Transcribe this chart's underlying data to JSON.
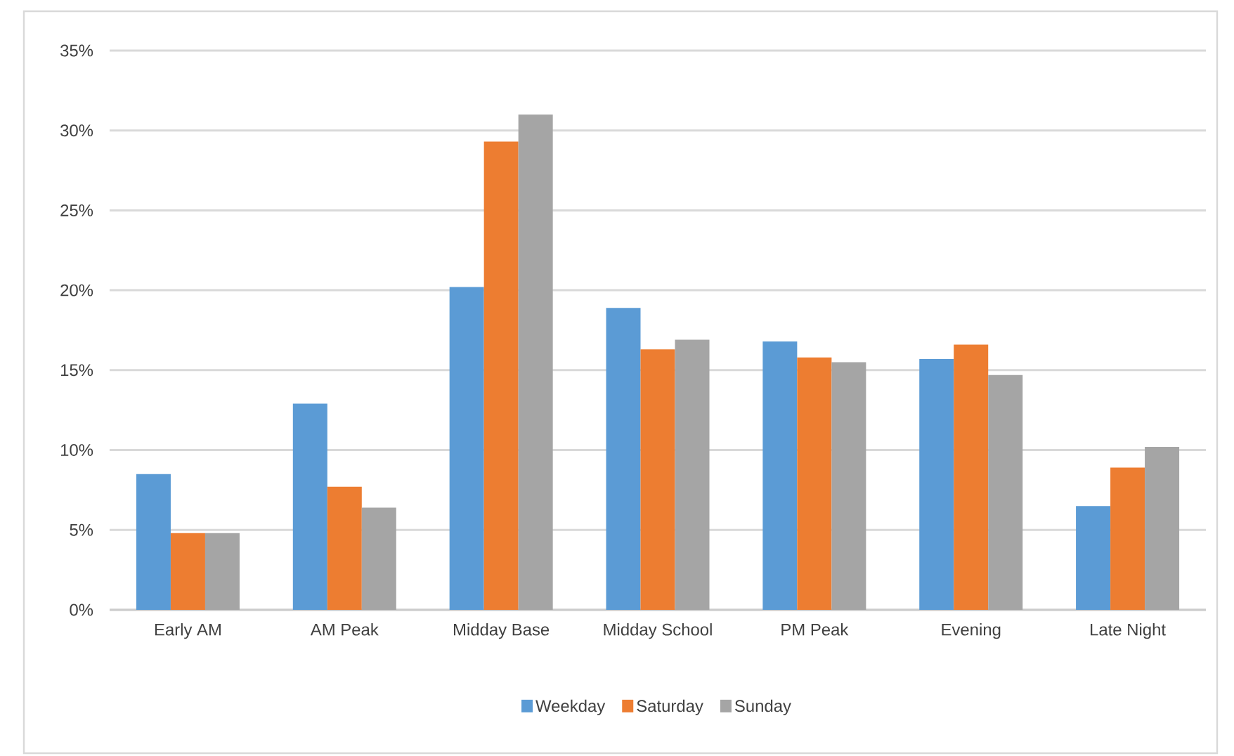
{
  "chart_data": {
    "type": "bar",
    "categories": [
      "Early AM",
      "AM Peak",
      "Midday Base",
      "Midday School",
      "PM Peak",
      "Evening",
      "Late Night"
    ],
    "series": [
      {
        "name": "Weekday",
        "color": "#5b9bd5",
        "values": [
          8.5,
          12.9,
          20.2,
          18.9,
          16.8,
          15.7,
          6.5
        ]
      },
      {
        "name": "Saturday",
        "color": "#ed7d31",
        "values": [
          4.8,
          7.7,
          29.3,
          16.3,
          15.8,
          16.6,
          8.9
        ]
      },
      {
        "name": "Sunday",
        "color": "#a5a5a5",
        "values": [
          4.8,
          6.4,
          31.0,
          16.9,
          15.5,
          14.7,
          10.2
        ]
      }
    ],
    "ylim": [
      0,
      35
    ],
    "yticks": [
      {
        "value": 0,
        "label": "0%"
      },
      {
        "value": 5,
        "label": "5%"
      },
      {
        "value": 10,
        "label": "10%"
      },
      {
        "value": 15,
        "label": "15%"
      },
      {
        "value": 20,
        "label": "20%"
      },
      {
        "value": 25,
        "label": "25%"
      },
      {
        "value": 30,
        "label": "30%"
      },
      {
        "value": 35,
        "label": "35%"
      }
    ],
    "grid": "y",
    "legend": "bottom"
  }
}
